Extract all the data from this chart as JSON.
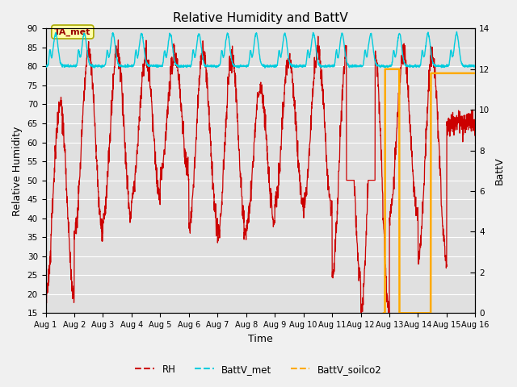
{
  "title": "Relative Humidity and BattV",
  "ylabel_left": "Relative Humidity",
  "ylabel_right": "BattV",
  "xlabel": "Time",
  "ylim_left": [
    15,
    90
  ],
  "ylim_right": [
    0,
    14
  ],
  "yticks_left": [
    15,
    20,
    25,
    30,
    35,
    40,
    45,
    50,
    55,
    60,
    65,
    70,
    75,
    80,
    85,
    90
  ],
  "yticks_right": [
    0,
    2,
    4,
    6,
    8,
    10,
    12,
    14
  ],
  "xstart": 0,
  "xend": 15,
  "xtick_labels": [
    "Aug 1",
    "Aug 2",
    "Aug 3",
    "Aug 4",
    "Aug 5",
    "Aug 6",
    "Aug 7",
    "Aug 8",
    "Aug 9",
    "Aug 10",
    "Aug 11",
    "Aug 12",
    "Aug 13",
    "Aug 14",
    "Aug 15",
    "Aug 16"
  ],
  "fig_bg_color": "#f0f0f0",
  "plot_bg_color": "#e0e0e0",
  "rh_color": "#cc0000",
  "battv_met_color": "#00ccdd",
  "battv_soilco2_color": "#ffaa00",
  "annotation_text": "TA_met",
  "legend_items": [
    "RH",
    "BattV_met",
    "BattV_soilco2"
  ],
  "rh_min_values": [
    19,
    36,
    40,
    45,
    52,
    38,
    35,
    38,
    44,
    43,
    25,
    15,
    40,
    29,
    65
  ],
  "rh_max_values": [
    70,
    84,
    84,
    83,
    83,
    84,
    82,
    74,
    82,
    84,
    83,
    83,
    83,
    83,
    65
  ],
  "battv_soilco2_data": [
    [
      11.8,
      0.0
    ],
    [
      11.85,
      12.0
    ],
    [
      12.3,
      12.0
    ],
    [
      12.35,
      0.0
    ],
    [
      12.8,
      0.0
    ],
    [
      12.85,
      0.0
    ],
    [
      13.4,
      0.0
    ],
    [
      13.45,
      11.8
    ],
    [
      15.5,
      11.8
    ]
  ]
}
